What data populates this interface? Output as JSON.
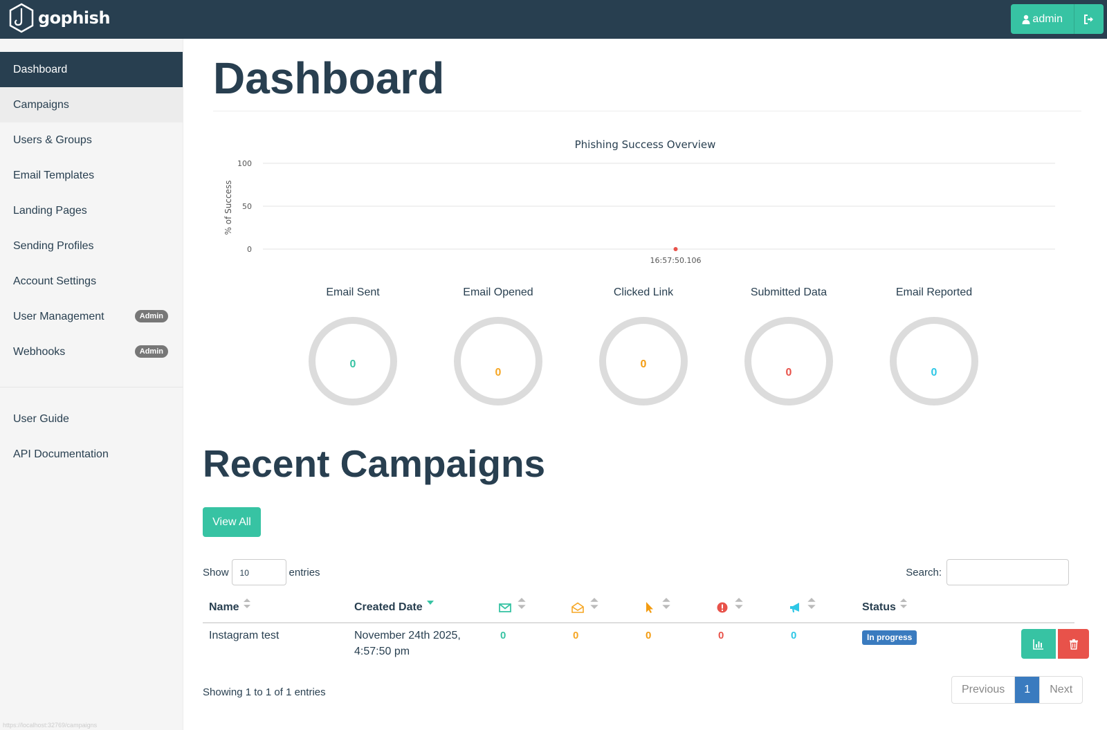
{
  "app": {
    "brand": "gophish",
    "user_label": "admin",
    "colors": {
      "navbar": "#283f50",
      "accent": "#37c3a3",
      "danger": "#e8524a",
      "primary": "#3a7bbf",
      "warning": "#f6a623",
      "info": "#2ec7e6"
    }
  },
  "sidebar": {
    "items": [
      {
        "label": "Dashboard",
        "active": true
      },
      {
        "label": "Campaigns"
      },
      {
        "label": "Users & Groups"
      },
      {
        "label": "Email Templates"
      },
      {
        "label": "Landing Pages"
      },
      {
        "label": "Sending Profiles"
      },
      {
        "label": "Account Settings"
      },
      {
        "label": "User Management",
        "badge": "Admin"
      },
      {
        "label": "Webhooks",
        "badge": "Admin"
      }
    ],
    "secondary": [
      {
        "label": "User Guide"
      },
      {
        "label": "API Documentation"
      }
    ],
    "status_url": "https://localhost:32769/campaigns"
  },
  "main": {
    "title": "Dashboard"
  },
  "chart_data": {
    "type": "line",
    "title": "Phishing Success Overview",
    "ylabel": "% of Success",
    "xlabel": "",
    "ylim": [
      0,
      100
    ],
    "yticks": [
      "100",
      "50",
      "0"
    ],
    "x": [
      "16:57:50.106"
    ],
    "series": [
      {
        "values": [
          0
        ],
        "color": "#e8524a"
      }
    ],
    "grid": true
  },
  "stats": [
    {
      "label": "Email Sent",
      "value": "0",
      "color": "#37c3a3"
    },
    {
      "label": "Email Opened",
      "value": "0",
      "color": "#f6a623"
    },
    {
      "label": "Clicked Link",
      "value": "0",
      "color": "#f39c12"
    },
    {
      "label": "Submitted Data",
      "value": "0",
      "color": "#e8524a"
    },
    {
      "label": "Email Reported",
      "value": "0",
      "color": "#2ec7e6"
    }
  ],
  "recent": {
    "title": "Recent Campaigns",
    "view_all": "View All",
    "show_label": "Show",
    "entries_label": "entries",
    "page_length": "10",
    "search_label": "Search:",
    "columns": {
      "name": "Name",
      "created": "Created Date",
      "sent_icon": "envelope-icon",
      "opened_icon": "envelope-open-icon",
      "clicked_icon": "pointer-icon",
      "submitted_icon": "exclamation-icon",
      "reported_icon": "bullhorn-icon",
      "status": "Status"
    },
    "rows": [
      {
        "name": "Instagram test",
        "created_line1": "November 24th 2025,",
        "created_line2": "4:57:50 pm",
        "sent": "0",
        "opened": "0",
        "clicked": "0",
        "submitted": "0",
        "reported": "0",
        "status": "In progress"
      }
    ],
    "info": "Showing 1 to 1 of 1 entries",
    "pager": {
      "previous": "Previous",
      "current": "1",
      "next": "Next"
    }
  }
}
